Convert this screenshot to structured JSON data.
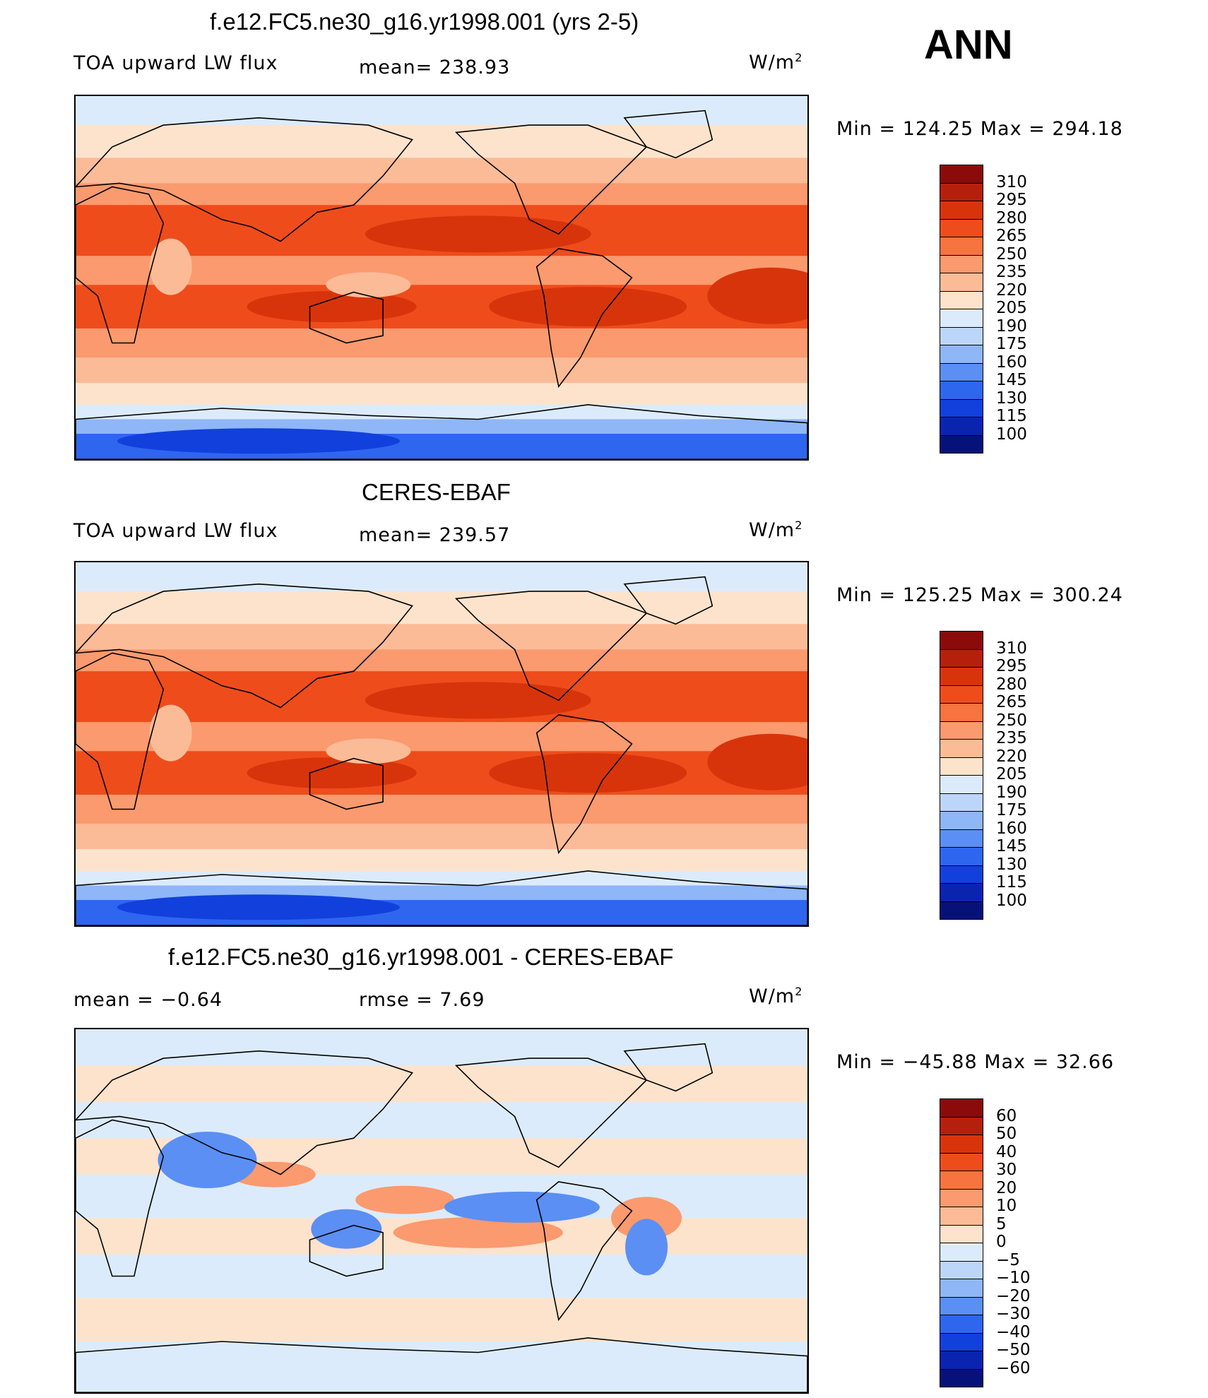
{
  "season": "ANN",
  "units_main": "W/m",
  "units_sup": "2",
  "panels": [
    {
      "title": "f.e12.FC5.ne30_g16.yr1998.001 (yrs 2-5)",
      "left_label": "TOA upward LW flux",
      "mid_label": "mean=  238.93",
      "minmax": "Min  =  124.25  Max  =  294.18",
      "field": "model"
    },
    {
      "title": "CERES-EBAF",
      "left_label": "TOA upward LW flux",
      "mid_label": "mean=  239.57",
      "minmax": "Min  =  125.25  Max  =  300.24",
      "field": "obs"
    },
    {
      "title": "f.e12.FC5.ne30_g16.yr1998.001 - CERES-EBAF",
      "left_label": "mean  =    −0.64",
      "mid_label": "rmse  =     7.69",
      "minmax": "Min  =  −45.88  Max  =    32.66",
      "field": "diff"
    }
  ],
  "colorbar_abs": {
    "labels": [
      "310",
      "295",
      "280",
      "265",
      "250",
      "235",
      "220",
      "205",
      "190",
      "175",
      "160",
      "145",
      "130",
      "115",
      "100"
    ],
    "colors": [
      "#8b0a0a",
      "#b5200c",
      "#d8340c",
      "#ef4c1c",
      "#f7733f",
      "#fa9a6e",
      "#fcbb97",
      "#fde3cc",
      "#dcebfb",
      "#bcd6fa",
      "#8fb6f7",
      "#5b8ff4",
      "#2f66f0",
      "#1240dc",
      "#0a24b0",
      "#06127a"
    ]
  },
  "colorbar_diff": {
    "labels": [
      "60",
      "50",
      "40",
      "30",
      "20",
      "10",
      "5",
      "0",
      "−5",
      "−10",
      "−20",
      "−30",
      "−40",
      "−50",
      "−60"
    ],
    "colors": [
      "#8b0a0a",
      "#b5200c",
      "#d8340c",
      "#ef4c1c",
      "#f7733f",
      "#fa9a6e",
      "#fcbb97",
      "#fde3cc",
      "#dcebfb",
      "#bcd6fa",
      "#8fb6f7",
      "#5b8ff4",
      "#2f66f0",
      "#1240dc",
      "#0a24b0",
      "#06127a"
    ]
  }
}
